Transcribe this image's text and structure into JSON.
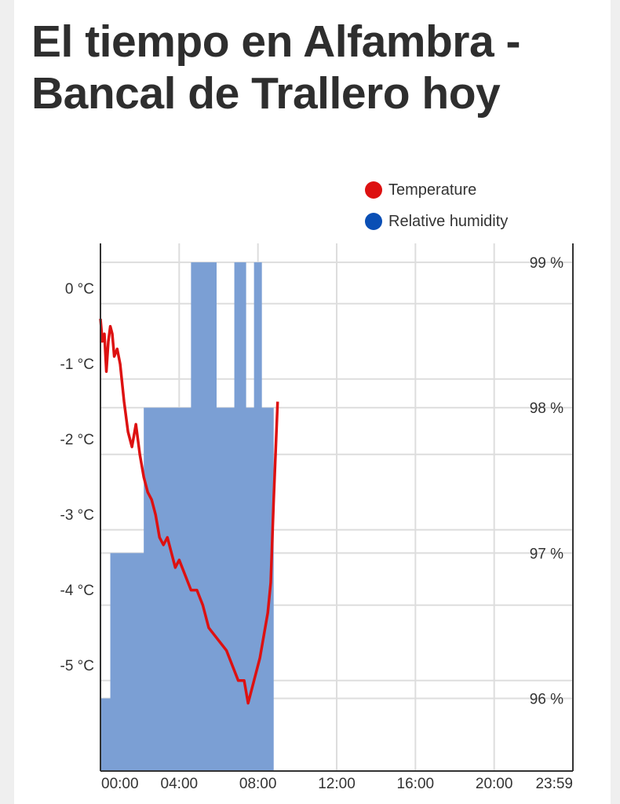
{
  "page": {
    "title": "El tiempo en Alfambra - Bancal de Trallero hoy"
  },
  "colors": {
    "temperature": "#dd1111",
    "humidity": "#0a4fb5",
    "humidity_fill": "#7b9fd4",
    "grid": "#dddddd"
  },
  "chart_data": {
    "type": "line",
    "title": "",
    "legend": [
      "Temperature",
      "Relative humidity"
    ],
    "legend_position": "top-right",
    "grid": true,
    "x_ticks": [
      "00:00",
      "04:00",
      "08:00",
      "12:00",
      "16:00",
      "20:00",
      "23:59"
    ],
    "x_range_hours": [
      0,
      24
    ],
    "y_left": {
      "label": "Temperature",
      "unit": "°C",
      "ticks": [
        "0 °C",
        "-1 °C",
        "-2 °C",
        "-3 °C",
        "-4 °C",
        "-5 °C"
      ],
      "tick_values": [
        0,
        -1,
        -2,
        -3,
        -4,
        -5
      ],
      "range": [
        -6.2,
        0.8
      ]
    },
    "y_right": {
      "label": "Relative humidity",
      "unit": "%",
      "ticks": [
        "99 %",
        "98 %",
        "97 %",
        "96 %"
      ],
      "tick_values": [
        99,
        98,
        97,
        96
      ],
      "range": [
        95.5,
        99.13
      ]
    },
    "series": [
      {
        "name": "Relative humidity",
        "type": "area",
        "axis": "right",
        "points": [
          [
            0.0,
            96
          ],
          [
            0.5,
            96
          ],
          [
            0.5,
            97
          ],
          [
            2.2,
            97
          ],
          [
            2.2,
            98
          ],
          [
            4.6,
            98
          ],
          [
            4.6,
            99
          ],
          [
            5.9,
            99
          ],
          [
            5.9,
            98
          ],
          [
            6.8,
            98
          ],
          [
            6.8,
            99
          ],
          [
            7.4,
            99
          ],
          [
            7.4,
            98
          ],
          [
            7.8,
            98
          ],
          [
            7.8,
            99
          ],
          [
            8.2,
            99
          ],
          [
            8.2,
            98
          ],
          [
            8.8,
            98
          ],
          [
            8.8,
            95.5
          ],
          [
            9.0,
            95.5
          ]
        ]
      },
      {
        "name": "Temperature",
        "type": "line",
        "axis": "left",
        "points": [
          [
            0.0,
            -0.2
          ],
          [
            0.1,
            -0.5
          ],
          [
            0.2,
            -0.4
          ],
          [
            0.3,
            -0.9
          ],
          [
            0.4,
            -0.5
          ],
          [
            0.5,
            -0.3
          ],
          [
            0.6,
            -0.4
          ],
          [
            0.7,
            -0.7
          ],
          [
            0.85,
            -0.6
          ],
          [
            1.0,
            -0.8
          ],
          [
            1.2,
            -1.3
          ],
          [
            1.4,
            -1.7
          ],
          [
            1.6,
            -1.9
          ],
          [
            1.8,
            -1.6
          ],
          [
            2.0,
            -2.0
          ],
          [
            2.2,
            -2.3
          ],
          [
            2.4,
            -2.5
          ],
          [
            2.6,
            -2.6
          ],
          [
            2.8,
            -2.8
          ],
          [
            3.0,
            -3.1
          ],
          [
            3.2,
            -3.2
          ],
          [
            3.4,
            -3.1
          ],
          [
            3.6,
            -3.3
          ],
          [
            3.8,
            -3.5
          ],
          [
            4.0,
            -3.4
          ],
          [
            4.3,
            -3.6
          ],
          [
            4.6,
            -3.8
          ],
          [
            4.9,
            -3.8
          ],
          [
            5.2,
            -4.0
          ],
          [
            5.5,
            -4.3
          ],
          [
            5.8,
            -4.4
          ],
          [
            6.1,
            -4.5
          ],
          [
            6.4,
            -4.6
          ],
          [
            6.7,
            -4.8
          ],
          [
            7.0,
            -5.0
          ],
          [
            7.3,
            -5.0
          ],
          [
            7.5,
            -5.3
          ],
          [
            7.7,
            -5.1
          ],
          [
            7.9,
            -4.9
          ],
          [
            8.1,
            -4.7
          ],
          [
            8.3,
            -4.4
          ],
          [
            8.5,
            -4.1
          ],
          [
            8.65,
            -3.7
          ],
          [
            8.8,
            -2.6
          ],
          [
            9.0,
            -1.3
          ]
        ]
      }
    ]
  }
}
